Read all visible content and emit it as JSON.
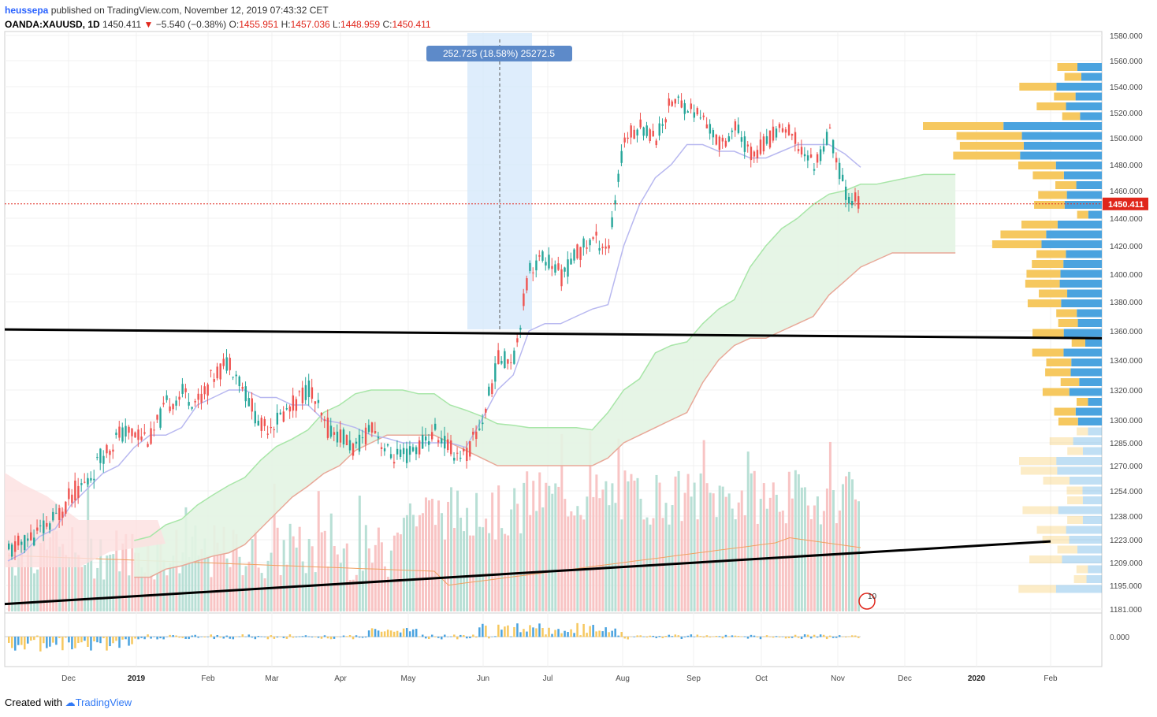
{
  "header": {
    "username": "heussepa",
    "published_text": "published on TradingView.com, November 12, 2019 07:43:32 CET",
    "symbol": "OANDA:XAUUSD, 1D",
    "last": "1450.411",
    "change": "−5.540 (−0.38%)",
    "o_label": "O:",
    "o_value": "1455.951",
    "h_label": "H:",
    "h_value": "1457.036",
    "l_label": "L:",
    "l_value": "1448.959",
    "c_label": "C:",
    "c_value": "1450.411"
  },
  "measure_label": "252.725 (18.58%) 25272.5",
  "price_tag": "1450.411",
  "event_badge": "10",
  "footer": {
    "created_with": "Created with",
    "brand": "TradingView"
  },
  "colors": {
    "up": "#26a69a",
    "down": "#ef5350",
    "tenkan": "#b8b8f0",
    "kijun": "#e8a090",
    "span_a": "#a8e6a8",
    "span_b": "#e8a898",
    "cloud_bull": "#e3f4e3",
    "cloud_bear": "#fde0e0",
    "vp_up": "#4aa3df",
    "vp_down": "#f6c85f",
    "measure_bg": "#d6e8fb",
    "measure_tag": "#5d8ac9",
    "trendline": "#000000",
    "price_line": "#e0261b"
  },
  "chart_data": {
    "type": "candlestick",
    "title": "OANDA:XAUUSD, 1D",
    "y_axis": {
      "ticks": [
        1181,
        1195,
        1209,
        1223,
        1238,
        1254,
        1270,
        1285,
        1300,
        1320,
        1340,
        1360,
        1380,
        1400,
        1420,
        1440,
        1460,
        1480,
        1500,
        1520,
        1540,
        1560,
        1580
      ]
    },
    "y_tick_labels": [
      "1181.000",
      "1195.000",
      "1209.000",
      "1223.000",
      "1238.000",
      "1254.000",
      "1270.000",
      "1285.000",
      "1300.000",
      "1320.000",
      "1340.000",
      "1360.000",
      "1380.000",
      "1400.000",
      "1420.000",
      "1440.000",
      "1460.000",
      "1480.000",
      "1500.000",
      "1520.000",
      "1540.000",
      "1560.000",
      "1580.000"
    ],
    "x_axis_labels": [
      "Dec",
      "2019",
      "Feb",
      "Mar",
      "Apr",
      "May",
      "Jun",
      "Jul",
      "Aug",
      "Sep",
      "Oct",
      "Nov",
      "Dec",
      "2020",
      "Feb"
    ],
    "indicator_tick_label": "0.000",
    "closes_weekly": [
      1215,
      1222,
      1228,
      1237,
      1252,
      1260,
      1278,
      1290,
      1292,
      1288,
      1310,
      1318,
      1312,
      1330,
      1340,
      1318,
      1295,
      1300,
      1310,
      1322,
      1296,
      1290,
      1280,
      1298,
      1278,
      1275,
      1283,
      1292,
      1280,
      1277,
      1300,
      1340,
      1343,
      1405,
      1412,
      1398,
      1415,
      1425,
      1420,
      1500,
      1510,
      1500,
      1530,
      1525,
      1515,
      1495,
      1508,
      1488,
      1497,
      1510,
      1495,
      1480,
      1503,
      1458,
      1450
    ],
    "tenkan_weekly": [
      1210,
      1215,
      1225,
      1230,
      1245,
      1255,
      1265,
      1270,
      1282,
      1290,
      1290,
      1295,
      1310,
      1315,
      1320,
      1320,
      1315,
      1315,
      1310,
      1310,
      1300,
      1298,
      1295,
      1290,
      1288,
      1285,
      1285,
      1285,
      1285,
      1282,
      1300,
      1320,
      1330,
      1360,
      1365,
      1365,
      1370,
      1375,
      1378,
      1420,
      1450,
      1470,
      1480,
      1495,
      1495,
      1490,
      1490,
      1485,
      1485,
      1490,
      1495,
      1495,
      1495,
      1488,
      1478
    ],
    "kijun_weekly": [
      1205,
      1205,
      1210,
      1212,
      1215,
      1218,
      1220,
      1225,
      1235,
      1245,
      1255,
      1262,
      1270,
      1275,
      1285,
      1290,
      1295,
      1295,
      1295,
      1295,
      1290,
      1285,
      1280,
      1275,
      1275,
      1275,
      1275,
      1275,
      1275,
      1275,
      1280,
      1290,
      1295,
      1300,
      1305,
      1310,
      1330,
      1345,
      1355,
      1360,
      1360,
      1365,
      1370,
      1375,
      1390,
      1400,
      1410,
      1415,
      1420,
      1420,
      1420,
      1420,
      1420,
      1420,
      1420
    ],
    "volume_profile_rows": 54,
    "annotations": {
      "trendline_top": {
        "from_price": 1361,
        "to_price": 1355
      },
      "trendline_bottom": {
        "from_price": 1184,
        "to_price": 1222
      },
      "measure_range": "252.725 (18.58%) 25272.5"
    }
  }
}
